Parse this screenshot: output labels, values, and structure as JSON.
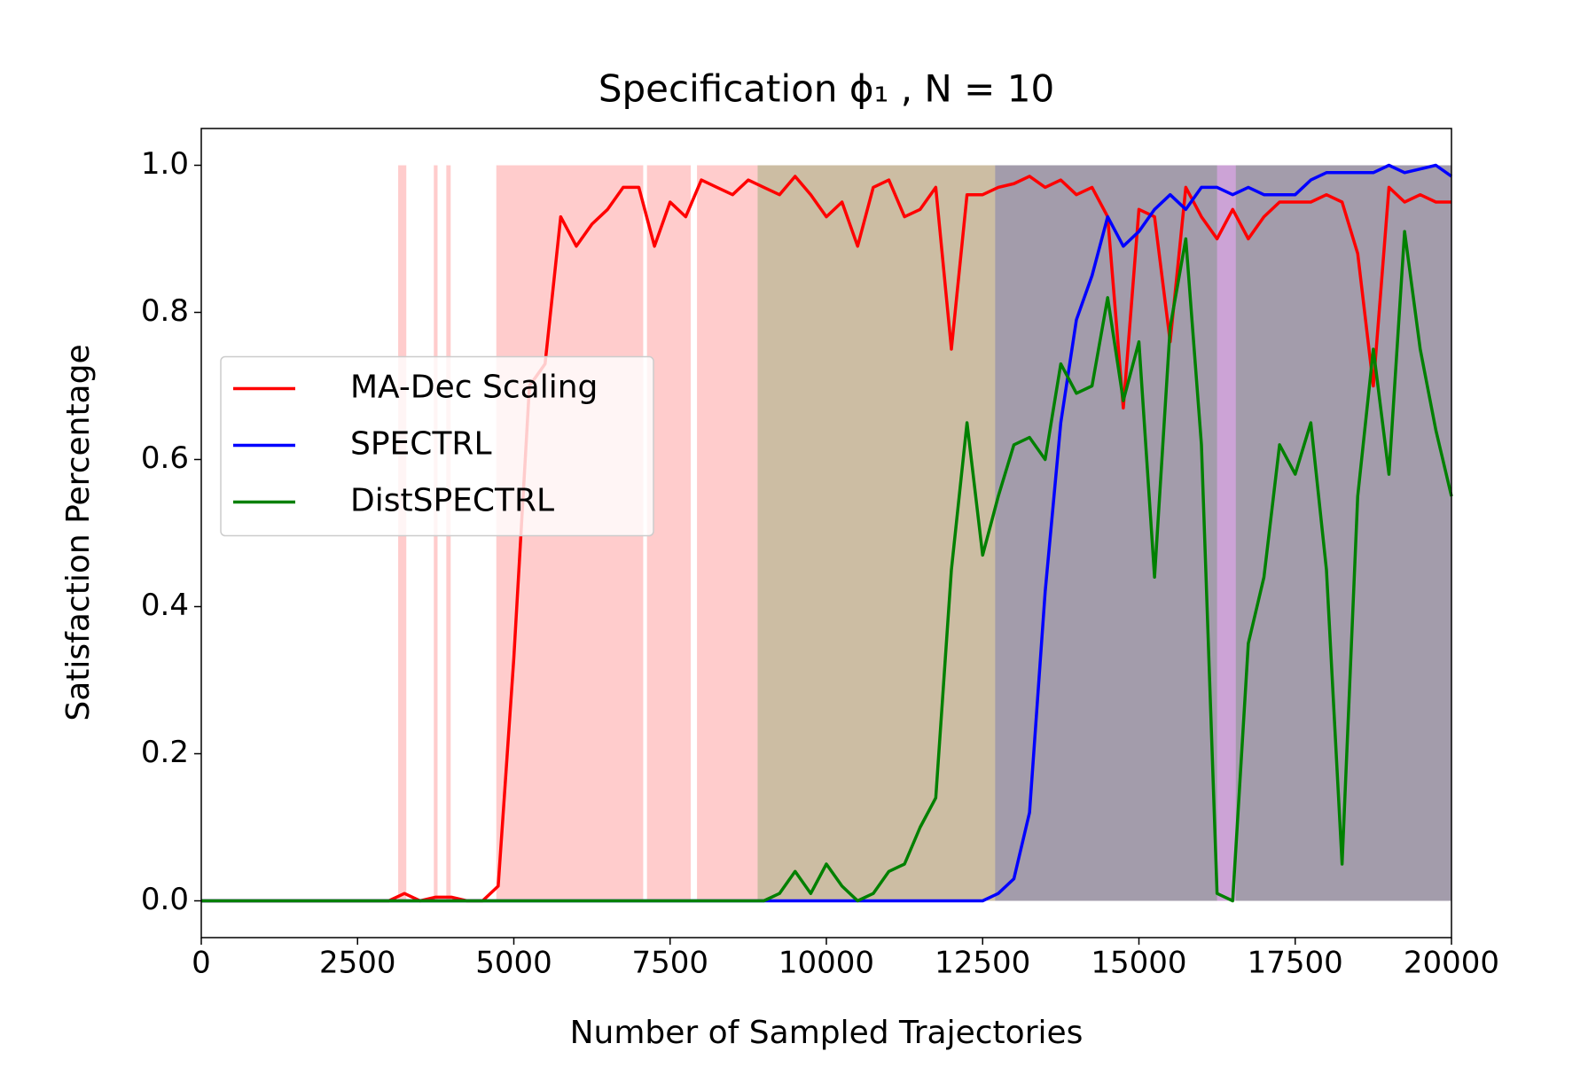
{
  "chart_data": {
    "type": "line",
    "title": "Specification ϕ₁ , N = 10",
    "x_label": "Number of Sampled Trajectories",
    "y_label": "Satisfaction Percentage",
    "xlim": [
      0,
      20000
    ],
    "ylim": [
      -0.05,
      1.05
    ],
    "xticks": [
      0,
      2500,
      5000,
      7500,
      10000,
      12500,
      15000,
      17500,
      20000
    ],
    "yticks": [
      {
        "value": 0,
        "label": "0.0"
      },
      {
        "value": 0.2,
        "label": "0.2"
      },
      {
        "value": 0.4,
        "label": "0.4"
      },
      {
        "value": 0.6,
        "label": "0.6"
      },
      {
        "value": 0.8,
        "label": "0.8"
      },
      {
        "value": 1,
        "label": "1.0"
      }
    ],
    "legend": "center left",
    "x": [
      0,
      250,
      500,
      750,
      1000,
      1250,
      1500,
      1750,
      2000,
      2250,
      2500,
      2750,
      3000,
      3250,
      3500,
      3750,
      4000,
      4250,
      4500,
      4750,
      5000,
      5250,
      5500,
      5750,
      6000,
      6250,
      6500,
      6750,
      7000,
      7250,
      7500,
      7750,
      8000,
      8250,
      8500,
      8750,
      9000,
      9250,
      9500,
      9750,
      10000,
      10250,
      10500,
      10750,
      11000,
      11250,
      11500,
      11750,
      12000,
      12250,
      12500,
      12750,
      13000,
      13250,
      13500,
      13750,
      14000,
      14250,
      14500,
      14750,
      15000,
      15250,
      15500,
      15750,
      16000,
      16250,
      16500,
      16750,
      17000,
      17250,
      17500,
      17750,
      18000,
      18250,
      18500,
      18750,
      19000,
      19250,
      19500,
      19750,
      20000
    ],
    "series": [
      {
        "name": "MA-Dec Scaling",
        "color": "#ff0000",
        "bands": [
          [
            3150,
            3280
          ],
          [
            3720,
            3780
          ],
          [
            3920,
            3990
          ],
          [
            4720,
            7070
          ],
          [
            7130,
            7830
          ],
          [
            7930,
            20000
          ]
        ],
        "values": [
          0,
          0,
          0,
          0,
          0,
          0,
          0,
          0,
          0,
          0,
          0,
          0,
          0,
          0.01,
          0,
          0.005,
          0.005,
          0,
          0,
          0.02,
          0.33,
          0.7,
          0.73,
          0.93,
          0.89,
          0.92,
          0.94,
          0.97,
          0.97,
          0.89,
          0.95,
          0.93,
          0.98,
          0.97,
          0.96,
          0.98,
          0.97,
          0.96,
          0.985,
          0.96,
          0.93,
          0.95,
          0.89,
          0.97,
          0.98,
          0.93,
          0.94,
          0.97,
          0.75,
          0.96,
          0.96,
          0.97,
          0.975,
          0.985,
          0.97,
          0.98,
          0.96,
          0.97,
          0.93,
          0.67,
          0.94,
          0.93,
          0.76,
          0.97,
          0.93,
          0.9,
          0.94,
          0.9,
          0.93,
          0.95,
          0.95,
          0.95,
          0.96,
          0.95,
          0.88,
          0.7,
          0.97,
          0.95,
          0.96,
          0.95,
          0.95
        ]
      },
      {
        "name": "SPECTRL",
        "color": "#0000ff",
        "bands": [
          [
            12700,
            20000
          ]
        ],
        "values": [
          0,
          0,
          0,
          0,
          0,
          0,
          0,
          0,
          0,
          0,
          0,
          0,
          0,
          0,
          0,
          0,
          0,
          0,
          0,
          0,
          0,
          0,
          0,
          0,
          0,
          0,
          0,
          0,
          0,
          0,
          0,
          0,
          0,
          0,
          0,
          0,
          0,
          0,
          0,
          0,
          0,
          0,
          0,
          0,
          0,
          0,
          0,
          0,
          0,
          0,
          0,
          0.01,
          0.03,
          0.12,
          0.42,
          0.65,
          0.79,
          0.85,
          0.93,
          0.89,
          0.91,
          0.94,
          0.96,
          0.94,
          0.97,
          0.97,
          0.96,
          0.97,
          0.96,
          0.96,
          0.96,
          0.98,
          0.99,
          0.99,
          0.99,
          0.99,
          1.0,
          0.99,
          0.995,
          1.0,
          0.985
        ]
      },
      {
        "name": "DistSPECTRL",
        "color": "#008000",
        "bands": [
          [
            8900,
            16250
          ],
          [
            16550,
            20000
          ]
        ],
        "values": [
          0,
          0,
          0,
          0,
          0,
          0,
          0,
          0,
          0,
          0,
          0,
          0,
          0,
          0,
          0,
          0,
          0,
          0,
          0,
          0,
          0,
          0,
          0,
          0,
          0,
          0,
          0,
          0,
          0,
          0,
          0,
          0,
          0,
          0,
          0,
          0,
          0,
          0.01,
          0.04,
          0.01,
          0.05,
          0.02,
          0,
          0.01,
          0.04,
          0.05,
          0.1,
          0.14,
          0.45,
          0.65,
          0.47,
          0.55,
          0.62,
          0.63,
          0.6,
          0.73,
          0.69,
          0.7,
          0.82,
          0.68,
          0.76,
          0.44,
          0.78,
          0.9,
          0.62,
          0.01,
          0,
          0.35,
          0.44,
          0.62,
          0.58,
          0.65,
          0.45,
          0.05,
          0.55,
          0.75,
          0.58,
          0.91,
          0.75,
          0.64,
          0.55
        ]
      }
    ]
  }
}
